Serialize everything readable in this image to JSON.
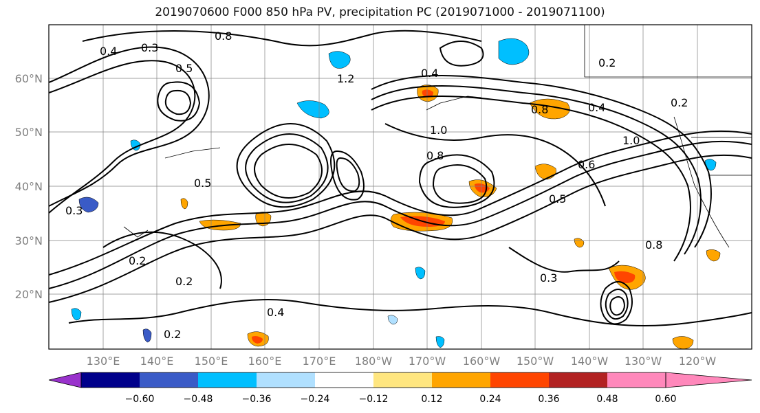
{
  "title": "2019070600 F000 850 hPa PV, precipitation PC (2019071000 - 2019071100)",
  "map": {
    "lat_labels": [
      "60°N",
      "50°N",
      "40°N",
      "30°N",
      "20°N"
    ],
    "lon_labels": [
      "130°E",
      "140°E",
      "150°E",
      "160°E",
      "170°E",
      "180°W",
      "170°W",
      "160°W",
      "150°W",
      "140°W",
      "130°W",
      "120°W"
    ],
    "contour_labels": [
      "0.8",
      "0.4",
      "0.3",
      "0.5",
      "0.2",
      "1.2",
      "0.4",
      "0.8",
      "0.4",
      "1.0",
      "0.8",
      "1.0",
      "0.6",
      "0.5",
      "0.2",
      "0.3",
      "0.2",
      "0.4",
      "0.2",
      "0.5",
      "0.8",
      "0.3",
      "0.2"
    ]
  },
  "colorbar": {
    "colors": [
      "#9932cc",
      "#00008b",
      "#3a5bc7",
      "#00bfff",
      "#b0e0ff",
      "#ffffff",
      "#ffe680",
      "#ffa500",
      "#ff4500",
      "#b22222",
      "#ff88bb"
    ],
    "tick_labels": [
      "−0.60",
      "−0.48",
      "−0.36",
      "−0.24",
      "−0.12",
      "0.12",
      "0.24",
      "0.36",
      "0.48",
      "0.60"
    ]
  }
}
